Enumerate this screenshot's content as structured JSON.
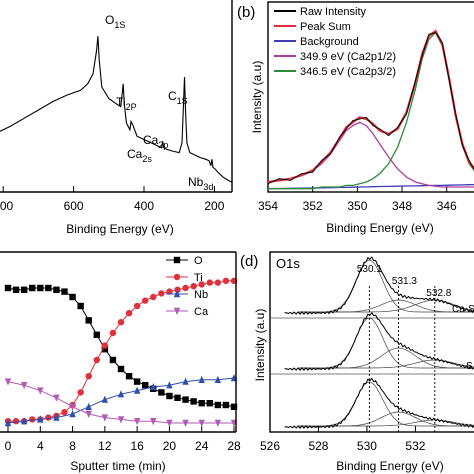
{
  "chart_data": [
    {
      "panel": "a",
      "type": "line",
      "title": "",
      "xlabel": "Binding Energy (eV)",
      "ylabel": "",
      "xlim": [
        900,
        150
      ],
      "xticks": [
        "800",
        "600",
        "400",
        "200"
      ],
      "annotations": [
        {
          "base": "O",
          "sub": "1S",
          "x": 531
        },
        {
          "base": "Ti",
          "sub": "2P",
          "x": 459
        },
        {
          "base": "C",
          "sub": "1S",
          "x": 285
        },
        {
          "base": "Ca",
          "sub": "2s",
          "x": 439
        },
        {
          "base": "Ca",
          "sub": "2p",
          "x": 347
        },
        {
          "base": "Nb",
          "sub": "3d",
          "x": 207
        }
      ],
      "x": [
        900,
        860,
        820,
        780,
        740,
        700,
        660,
        620,
        580,
        560,
        545,
        535,
        531,
        527,
        520,
        500,
        480,
        466,
        462,
        459,
        456,
        450,
        440,
        437,
        430,
        420,
        400,
        380,
        360,
        350,
        347,
        344,
        335,
        320,
        300,
        292,
        288,
        285,
        282,
        278,
        270,
        260,
        240,
        225,
        215,
        210,
        207,
        204,
        198,
        190,
        175,
        160,
        150
      ],
      "y": [
        0.3,
        0.32,
        0.36,
        0.4,
        0.45,
        0.5,
        0.55,
        0.59,
        0.62,
        0.66,
        0.72,
        0.86,
        0.95,
        0.8,
        0.64,
        0.57,
        0.54,
        0.52,
        0.6,
        0.66,
        0.54,
        0.42,
        0.38,
        0.43,
        0.4,
        0.34,
        0.32,
        0.3,
        0.28,
        0.27,
        0.31,
        0.27,
        0.26,
        0.25,
        0.24,
        0.3,
        0.52,
        0.7,
        0.5,
        0.3,
        0.24,
        0.23,
        0.21,
        0.2,
        0.19,
        0.16,
        0.2,
        0.15,
        0.14,
        0.12,
        0.09,
        0.07,
        0.06
      ]
    },
    {
      "panel": "b",
      "type": "line",
      "label": "(b)",
      "xlabel": "Binding Energy (eV)",
      "ylabel": "Intensity (a.u)",
      "xlim": [
        354,
        344.6
      ],
      "xticks": [
        "354",
        "352",
        "350",
        "348",
        "346"
      ],
      "legend": [
        "Raw Intensity",
        "Peak Sum",
        "Background",
        "349.9 eV (Ca2p1/2)",
        "346.5 eV (Ca2p3/2)"
      ],
      "legend_position": "top-left",
      "series_colors": [
        "#000000",
        "#e0303c",
        "#3b3bb5",
        "#b23aa4",
        "#2e8b3a"
      ],
      "x": [
        354,
        353.5,
        353,
        352.5,
        352,
        351.6,
        351.2,
        350.8,
        350.5,
        350.2,
        349.9,
        349.6,
        349.3,
        349,
        348.6,
        348.2,
        347.8,
        347.4,
        347.1,
        346.8,
        346.5,
        346.2,
        345.9,
        345.6,
        345.3,
        345,
        344.6
      ],
      "background": [
        0.02,
        0.021,
        0.022,
        0.023,
        0.024,
        0.025,
        0.026,
        0.027,
        0.028,
        0.029,
        0.03,
        0.031,
        0.032,
        0.033,
        0.034,
        0.035,
        0.036,
        0.037,
        0.038,
        0.039,
        0.04,
        0.04,
        0.041,
        0.042,
        0.043,
        0.044,
        0.045
      ],
      "ca2p12": [
        0.06,
        0.07,
        0.08,
        0.1,
        0.13,
        0.17,
        0.23,
        0.31,
        0.37,
        0.4,
        0.42,
        0.4,
        0.35,
        0.29,
        0.21,
        0.14,
        0.09,
        0.06,
        0.05,
        0.04,
        0.035,
        0.03,
        0.03,
        0.03,
        0.03,
        0.03,
        0.03
      ],
      "ca2p32": [
        0.02,
        0.02,
        0.02,
        0.02,
        0.02,
        0.03,
        0.03,
        0.03,
        0.04,
        0.04,
        0.05,
        0.06,
        0.08,
        0.11,
        0.17,
        0.27,
        0.42,
        0.62,
        0.8,
        0.92,
        0.96,
        0.88,
        0.68,
        0.45,
        0.28,
        0.17,
        0.1
      ],
      "peak_sum": [
        0.06,
        0.07,
        0.08,
        0.1,
        0.13,
        0.18,
        0.24,
        0.32,
        0.39,
        0.42,
        0.45,
        0.44,
        0.41,
        0.37,
        0.35,
        0.38,
        0.48,
        0.66,
        0.83,
        0.94,
        0.97,
        0.89,
        0.69,
        0.46,
        0.29,
        0.18,
        0.11
      ],
      "raw": [
        0.05,
        0.08,
        0.07,
        0.11,
        0.12,
        0.19,
        0.23,
        0.33,
        0.38,
        0.43,
        0.44,
        0.45,
        0.4,
        0.38,
        0.34,
        0.39,
        0.47,
        0.67,
        0.82,
        0.95,
        0.96,
        0.9,
        0.68,
        0.47,
        0.28,
        0.19,
        0.1
      ]
    },
    {
      "panel": "c",
      "type": "line",
      "xlabel": "Sputter time (min)",
      "ylabel": "",
      "xlim": [
        0,
        28
      ],
      "xticks": [
        "0",
        "4",
        "8",
        "12",
        "16",
        "20",
        "24",
        "28"
      ],
      "legend_position": "top-right",
      "series": [
        {
          "name": "O",
          "color": "#000000",
          "marker": "square",
          "x": [
            0,
            1,
            2,
            3,
            4,
            5,
            6,
            7,
            8,
            9,
            10,
            11,
            12,
            13,
            14,
            15,
            16,
            17,
            18,
            19,
            20,
            21,
            22,
            23,
            24,
            25,
            26,
            27,
            28
          ],
          "y": [
            0.8,
            0.79,
            0.79,
            0.8,
            0.8,
            0.8,
            0.79,
            0.78,
            0.75,
            0.7,
            0.62,
            0.54,
            0.46,
            0.4,
            0.35,
            0.31,
            0.28,
            0.26,
            0.24,
            0.22,
            0.2,
            0.19,
            0.18,
            0.17,
            0.16,
            0.16,
            0.15,
            0.15,
            0.14
          ]
        },
        {
          "name": "Ti",
          "color": "#e0303c",
          "marker": "circle",
          "x": [
            0,
            1,
            2,
            3,
            4,
            5,
            6,
            7,
            8,
            9,
            10,
            11,
            12,
            13,
            14,
            15,
            16,
            17,
            18,
            19,
            20,
            21,
            22,
            23,
            24,
            25,
            26,
            27,
            28
          ],
          "y": [
            0.06,
            0.06,
            0.06,
            0.07,
            0.07,
            0.08,
            0.09,
            0.11,
            0.15,
            0.22,
            0.31,
            0.4,
            0.48,
            0.55,
            0.61,
            0.66,
            0.7,
            0.73,
            0.75,
            0.77,
            0.78,
            0.79,
            0.8,
            0.81,
            0.82,
            0.83,
            0.83,
            0.84,
            0.84
          ]
        },
        {
          "name": "Nb",
          "color": "#2f4fb0",
          "marker": "triangle-up",
          "x": [
            0,
            2,
            4,
            6,
            8,
            10,
            12,
            14,
            16,
            18,
            20,
            22,
            24,
            26,
            28
          ],
          "y": [
            0.05,
            0.06,
            0.07,
            0.08,
            0.1,
            0.14,
            0.18,
            0.21,
            0.23,
            0.25,
            0.26,
            0.28,
            0.29,
            0.29,
            0.3
          ]
        },
        {
          "name": "Ca",
          "color": "#b25ab4",
          "marker": "triangle-down",
          "x": [
            0,
            2,
            4,
            6,
            8,
            10,
            12,
            14,
            16,
            18,
            20,
            22,
            24,
            26,
            28
          ],
          "y": [
            0.28,
            0.26,
            0.23,
            0.19,
            0.14,
            0.1,
            0.08,
            0.07,
            0.06,
            0.06,
            0.05,
            0.05,
            0.05,
            0.05,
            0.05
          ]
        }
      ]
    },
    {
      "panel": "d",
      "type": "line",
      "label": "(d)",
      "title": "O1s",
      "xlabel": "Binding Energy (eV)",
      "ylabel": "Intensity (a.u)",
      "xlim": [
        526,
        534.5
      ],
      "xticks": [
        "526",
        "528",
        "530",
        "532"
      ],
      "peak_labels": [
        "530.1",
        "531.3",
        "532.8"
      ],
      "peak_positions": [
        530.1,
        531.3,
        532.8
      ],
      "side_labels": [
        "Ca-S",
        "S"
      ],
      "spectra_offsets": [
        0.0,
        0.32,
        0.64
      ]
    }
  ]
}
